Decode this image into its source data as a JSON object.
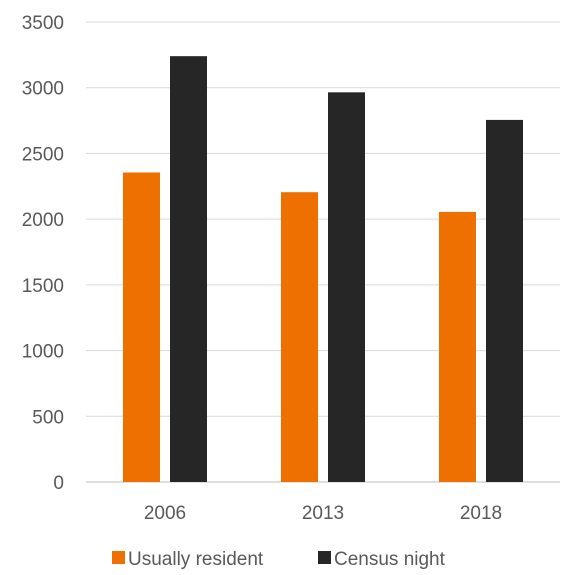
{
  "chart_data": {
    "type": "bar",
    "title": "",
    "xlabel": "",
    "ylabel": "",
    "categories": [
      "2006",
      "2013",
      "2018"
    ],
    "series": [
      {
        "name": "Usually resident",
        "color": "#ED7000",
        "values": [
          2355,
          2205,
          2055
        ]
      },
      {
        "name": "Census night",
        "color": "#262626",
        "values": [
          3240,
          2965,
          2755
        ]
      }
    ],
    "ylim": [
      0,
      3500
    ],
    "yticks": [
      "0",
      "500",
      "1000",
      "1500",
      "2000",
      "2500",
      "3000",
      "3500"
    ],
    "grid": true,
    "legend": "bottom"
  }
}
